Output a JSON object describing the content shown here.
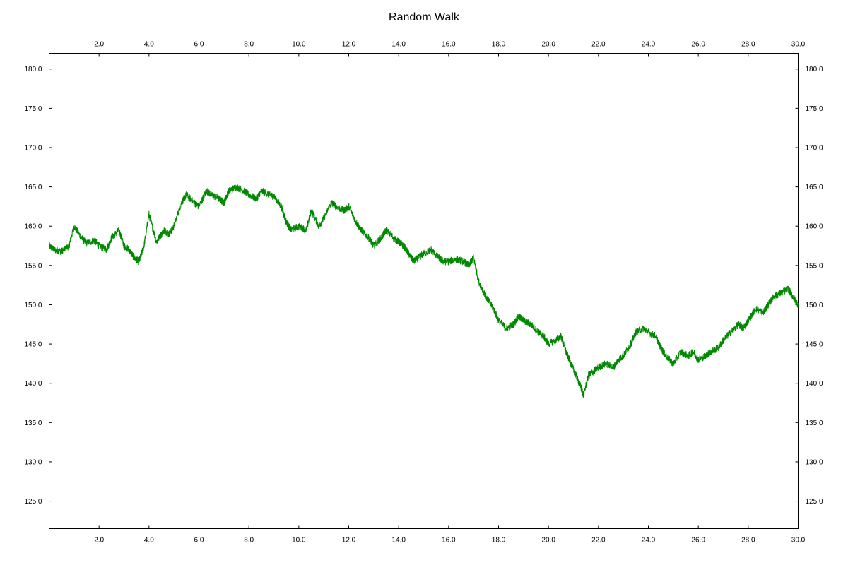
{
  "chart_data": {
    "type": "line",
    "title": "Random Walk",
    "xlabel": "",
    "ylabel": "",
    "xlim": [
      0,
      30
    ],
    "ylim": [
      121.5,
      182
    ],
    "x_ticks": [
      "2.0",
      "4.0",
      "6.0",
      "8.0",
      "10.0",
      "12.0",
      "14.0",
      "16.0",
      "18.0",
      "20.0",
      "22.0",
      "24.0",
      "26.0",
      "28.0",
      "30.0"
    ],
    "y_ticks": [
      "125.0",
      "130.0",
      "135.0",
      "140.0",
      "145.0",
      "150.0",
      "155.0",
      "160.0",
      "165.0",
      "170.0",
      "175.0",
      "180.0"
    ],
    "grid": false,
    "series": [
      {
        "color": "#008800",
        "x": [
          0,
          0.2,
          0.5,
          0.8,
          1.0,
          1.3,
          1.5,
          1.8,
          2.0,
          2.3,
          2.5,
          2.8,
          3.0,
          3.2,
          3.4,
          3.6,
          3.8,
          4.0,
          4.3,
          4.6,
          4.8,
          5.0,
          5.3,
          5.5,
          5.8,
          6.0,
          6.3,
          6.5,
          6.8,
          7.0,
          7.2,
          7.5,
          7.8,
          8.0,
          8.3,
          8.5,
          8.8,
          9.0,
          9.3,
          9.5,
          9.7,
          10.0,
          10.3,
          10.5,
          10.8,
          11.0,
          11.3,
          11.5,
          11.8,
          12.0,
          12.3,
          12.5,
          12.8,
          13.0,
          13.3,
          13.5,
          13.8,
          14.0,
          14.2,
          14.4,
          14.6,
          14.8,
          15.0,
          15.3,
          15.6,
          15.8,
          16.0,
          16.3,
          16.6,
          16.8,
          17.0,
          17.2,
          17.5,
          17.8,
          18.0,
          18.3,
          18.6,
          18.8,
          19.0,
          19.3,
          19.6,
          19.8,
          20.0,
          20.3,
          20.5,
          20.7,
          20.9,
          21.1,
          21.3,
          21.4,
          21.6,
          21.8,
          22.0,
          22.3,
          22.6,
          22.8,
          23.0,
          23.3,
          23.5,
          23.8,
          24.0,
          24.3,
          24.5,
          24.7,
          25.0,
          25.3,
          25.6,
          25.8,
          26.0,
          26.3,
          26.5,
          26.8,
          27.0,
          27.3,
          27.6,
          27.8,
          28.0,
          28.3,
          28.6,
          28.8,
          29.0,
          29.3,
          29.6,
          29.8,
          30.0
        ],
        "y": [
          157.5,
          157.0,
          156.8,
          157.5,
          160.0,
          158.5,
          157.8,
          158.2,
          157.5,
          157.0,
          158.5,
          159.5,
          157.5,
          157.0,
          156.0,
          155.5,
          157.5,
          161.5,
          158.0,
          159.5,
          159.0,
          160.0,
          163.0,
          164.0,
          163.0,
          162.5,
          164.5,
          164.0,
          163.5,
          163.0,
          164.5,
          165.0,
          164.5,
          164.0,
          163.5,
          164.5,
          164.0,
          163.8,
          162.5,
          160.5,
          159.5,
          160.0,
          159.5,
          162.0,
          160.0,
          161.0,
          163.0,
          162.5,
          162.0,
          162.5,
          160.5,
          159.5,
          158.5,
          157.5,
          158.5,
          159.5,
          158.5,
          158.0,
          157.5,
          156.5,
          155.5,
          156.0,
          156.5,
          157.0,
          156.0,
          155.5,
          155.5,
          155.8,
          155.5,
          155.0,
          156.0,
          153.0,
          151.0,
          149.5,
          148.0,
          147.0,
          147.5,
          148.5,
          148.0,
          147.5,
          146.5,
          146.0,
          145.0,
          145.5,
          146.0,
          144.0,
          142.5,
          141.0,
          139.5,
          138.5,
          141.0,
          141.5,
          142.0,
          142.5,
          142.0,
          143.0,
          143.5,
          145.0,
          146.5,
          147.0,
          146.5,
          146.0,
          144.5,
          143.5,
          142.5,
          144.0,
          143.5,
          144.0,
          143.0,
          143.5,
          144.0,
          144.5,
          145.5,
          146.5,
          147.5,
          147.0,
          148.0,
          149.5,
          149.0,
          150.0,
          151.0,
          151.5,
          152.0,
          151.0,
          150.0
        ]
      }
    ]
  }
}
